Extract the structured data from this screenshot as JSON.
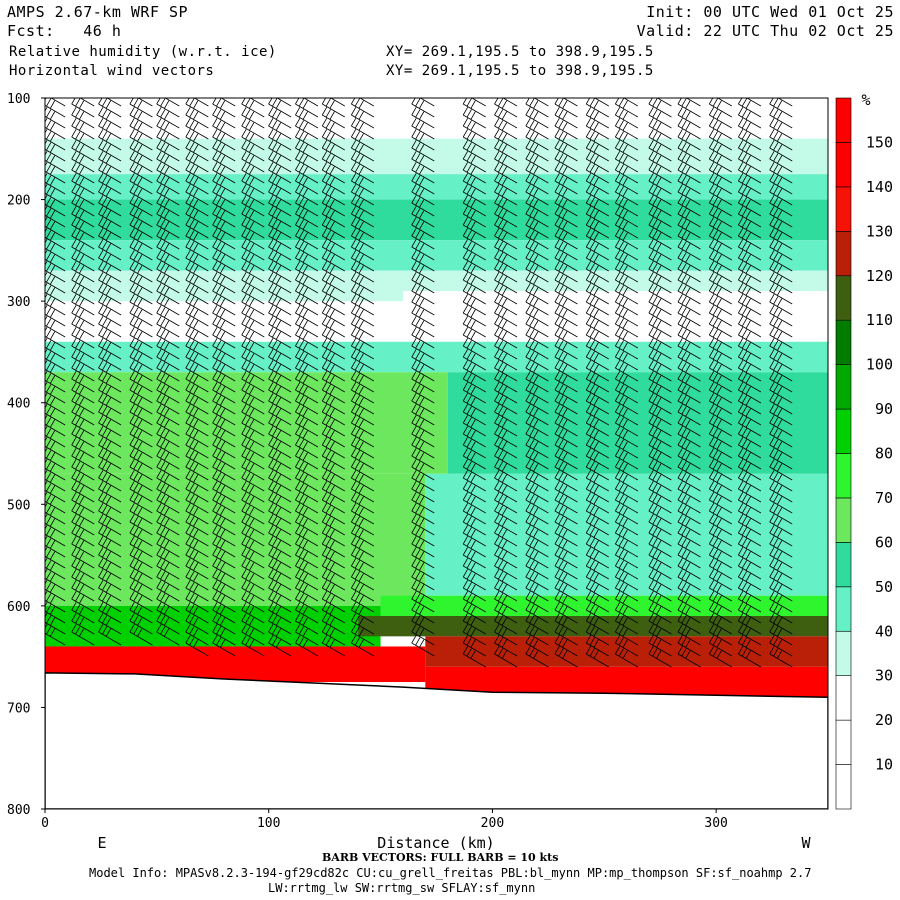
{
  "header": {
    "model": "AMPS 2.67-km WRF SP",
    "fcst": "Fcst:   46 h",
    "field1": "Relative humidity (w.r.t. ice)",
    "field2": "Horizontal wind vectors",
    "init": "Init: 00 UTC Wed 01 Oct 25",
    "valid": "Valid: 22 UTC Thu 02 Oct 25",
    "xs1": "XY= 269.1,195.5 to 398.9,195.5",
    "xs2": "XY= 269.1,195.5 to 398.9,195.5"
  },
  "footer": {
    "barb_note": "BARB VECTORS:  FULL BARB = 10 kts",
    "model_info": "Model Info: MPASv8.2.3-194-gf29cd82c CU:cu_grell_freitas PBL:bl_mynn MP:mp_thompson SF:sf_noahmp 2.7",
    "model_info2": "LW:rrtmg_lw SW:rrtmg_sw SFLAY:sf_mynn"
  },
  "chart_data": {
    "type": "heatmap",
    "title": "Relative humidity (w.r.t. ice)",
    "xlabel": "Distance (km)",
    "ylabel": "",
    "xlim": [
      0,
      350
    ],
    "ylim": [
      800,
      100
    ],
    "x_ticks": [
      0,
      100,
      200,
      300
    ],
    "y_ticks": [
      100,
      200,
      300,
      400,
      500,
      600,
      700,
      800
    ],
    "direction_labels": {
      "left": "E",
      "right": "W"
    },
    "colorbar": {
      "unit": "%",
      "levels": [
        10,
        20,
        30,
        40,
        50,
        60,
        70,
        80,
        90,
        100,
        110,
        120,
        130,
        140,
        150
      ],
      "colors": [
        "#ffffff",
        "#ffffff",
        "#ffffff",
        "#c4fbe8",
        "#66f0c6",
        "#2fdc9e",
        "#6de85e",
        "#2ff52f",
        "#00cf00",
        "#00a800",
        "#007c00",
        "#3f5f10",
        "#ba2008",
        "#f51308",
        "#ff0000",
        "#ff0000"
      ]
    },
    "rh_layers": [
      {
        "p_top": 100,
        "p_bottom": 140,
        "rh": 25,
        "x_start": 0,
        "x_end": 350
      },
      {
        "p_top": 140,
        "p_bottom": 175,
        "rh": 35,
        "x_start": 0,
        "x_end": 350
      },
      {
        "p_top": 175,
        "p_bottom": 200,
        "rh": 45,
        "x_start": 0,
        "x_end": 350
      },
      {
        "p_top": 200,
        "p_bottom": 240,
        "rh": 55,
        "x_start": 0,
        "x_end": 350
      },
      {
        "p_top": 240,
        "p_bottom": 270,
        "rh": 45,
        "x_start": 0,
        "x_end": 350
      },
      {
        "p_top": 270,
        "p_bottom": 300,
        "rh": 35,
        "x_start": 0,
        "x_end": 350
      },
      {
        "p_top": 290,
        "p_bottom": 340,
        "rh": 15,
        "x_start": 160,
        "x_end": 350
      },
      {
        "p_top": 340,
        "p_bottom": 370,
        "rh": 45,
        "x_start": 0,
        "x_end": 350
      },
      {
        "p_top": 370,
        "p_bottom": 470,
        "rh": 65,
        "x_start": 0,
        "x_end": 180
      },
      {
        "p_top": 370,
        "p_bottom": 470,
        "rh": 55,
        "x_start": 180,
        "x_end": 350
      },
      {
        "p_top": 470,
        "p_bottom": 600,
        "rh": 65,
        "x_start": 0,
        "x_end": 170
      },
      {
        "p_top": 470,
        "p_bottom": 590,
        "rh": 45,
        "x_start": 170,
        "x_end": 350
      },
      {
        "p_top": 590,
        "p_bottom": 615,
        "rh": 75,
        "x_start": 150,
        "x_end": 350
      },
      {
        "p_top": 600,
        "p_bottom": 640,
        "rh": 85,
        "x_start": 0,
        "x_end": 150
      },
      {
        "p_top": 610,
        "p_bottom": 630,
        "rh": 110,
        "x_start": 140,
        "x_end": 350
      },
      {
        "p_top": 630,
        "p_bottom": 660,
        "rh": 125,
        "x_start": 170,
        "x_end": 350
      },
      {
        "p_top": 640,
        "p_bottom": 675,
        "rh": 145,
        "x_start": 0,
        "x_end": 170
      },
      {
        "p_top": 660,
        "p_bottom": 690,
        "rh": 145,
        "x_start": 170,
        "x_end": 350
      }
    ],
    "terrain_surface": {
      "x": [
        0,
        40,
        80,
        120,
        160,
        200,
        250,
        300,
        350
      ],
      "p": [
        666,
        667,
        672,
        676,
        680,
        685,
        686,
        688,
        690
      ]
    },
    "wind_barbs": {
      "columns_km": [
        9,
        22,
        34,
        48,
        60,
        73,
        85,
        98,
        110,
        122,
        134,
        147,
        174,
        197,
        211,
        225,
        238,
        252,
        265,
        280,
        293,
        307,
        320,
        334
      ],
      "direction_deg": 300
    }
  }
}
